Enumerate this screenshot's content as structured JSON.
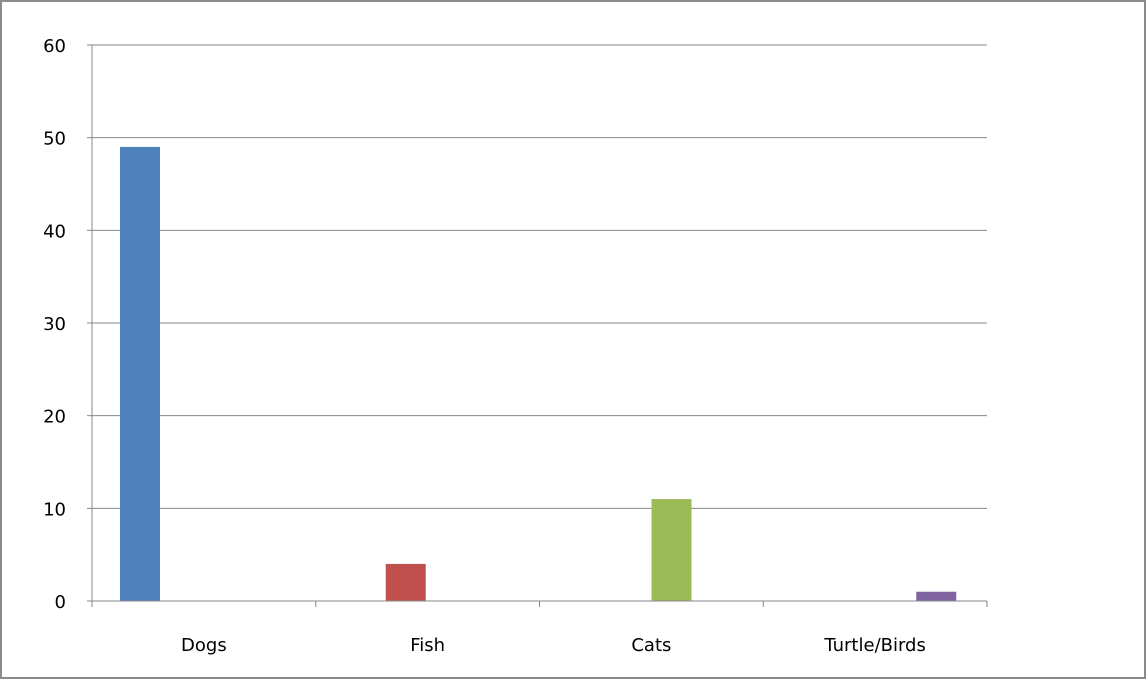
{
  "chart_data": {
    "type": "bar",
    "categories": [
      "Dogs",
      "Fish",
      "Cats",
      "Turtle/Birds"
    ],
    "values": [
      49,
      4,
      11,
      1
    ],
    "colors": [
      "#4f81bd",
      "#c0504d",
      "#9bbb59",
      "#8064a2"
    ],
    "ylim": [
      0,
      60
    ],
    "yticks": [
      0,
      10,
      20,
      30,
      40,
      50,
      60
    ],
    "grid": true,
    "legend": "none"
  }
}
